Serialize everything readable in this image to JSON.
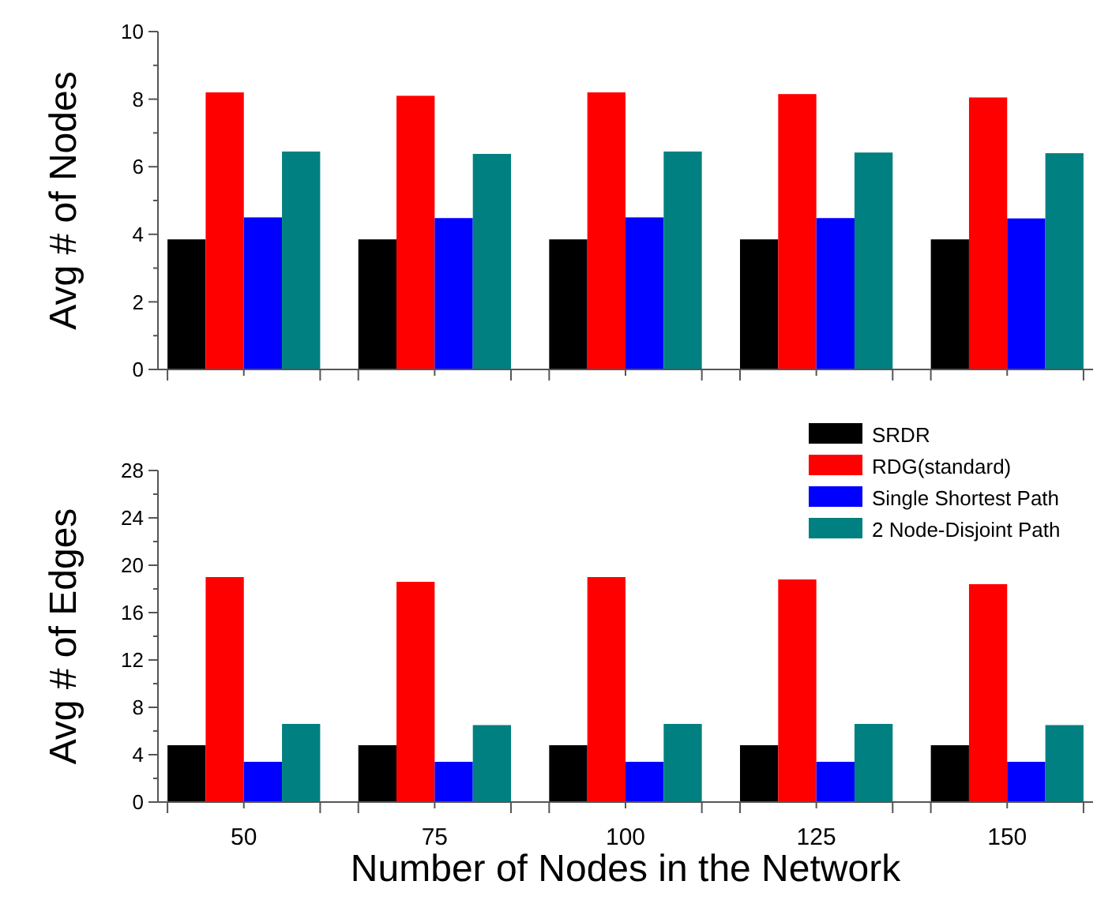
{
  "chart_data": [
    {
      "type": "bar",
      "ylabel": "Avg # of Nodes",
      "categories": [
        null,
        null,
        null,
        null,
        null
      ],
      "ylim": [
        0,
        10
      ],
      "yticks": [
        0,
        {
          "value": 1,
          "label": null
        },
        2,
        {
          "value": 3,
          "label": null
        },
        4,
        {
          "value": 5,
          "label": null
        },
        6,
        {
          "value": 7,
          "label": null
        },
        8,
        {
          "value": 9,
          "label": null
        },
        10
      ],
      "tick_labels": "y",
      "legend": false,
      "grid": false,
      "series": [
        {
          "color": "#000000",
          "values": [
            3.85,
            3.85,
            3.85,
            3.85,
            3.85
          ]
        },
        {
          "color": "#ff0000",
          "values": [
            8.2,
            8.1,
            8.2,
            8.15,
            8.05
          ]
        },
        {
          "color": "#0000ff",
          "values": [
            4.5,
            4.48,
            4.5,
            4.48,
            4.47
          ]
        },
        {
          "color": "#008080",
          "values": [
            6.45,
            6.38,
            6.45,
            6.42,
            6.4
          ]
        }
      ]
    },
    {
      "type": "bar",
      "ylabel": "Avg # of Edges",
      "xlabel": "Number of Nodes in the Network",
      "categories": [
        "50",
        "75",
        "100",
        "125",
        "150"
      ],
      "ylim": [
        0,
        28
      ],
      "yticks": [
        0,
        {
          "value": 2,
          "label": null
        },
        4,
        {
          "value": 6,
          "label": null
        },
        8,
        {
          "value": 10,
          "label": null
        },
        12,
        {
          "value": 14,
          "label": null
        },
        16,
        {
          "value": 18,
          "label": null
        },
        20,
        {
          "value": 22,
          "label": null
        },
        24,
        {
          "value": 26,
          "label": null
        },
        28
      ],
      "legend": "top right",
      "grid": false,
      "series": [
        {
          "name": "SRDR",
          "color": "#000000",
          "values": [
            4.8,
            4.8,
            4.8,
            4.8,
            4.8
          ]
        },
        {
          "name": "RDG(standard)",
          "color": "#ff0000",
          "values": [
            19,
            18.6,
            19,
            18.8,
            18.4
          ]
        },
        {
          "name": "Single Shortest Path",
          "color": "#0000ff",
          "values": [
            3.4,
            3.4,
            3.4,
            3.4,
            3.4
          ]
        },
        {
          "name": "2 Node-Disjoint Path",
          "color": "#008080",
          "values": [
            6.6,
            6.5,
            6.6,
            6.6,
            6.5
          ]
        }
      ]
    }
  ]
}
